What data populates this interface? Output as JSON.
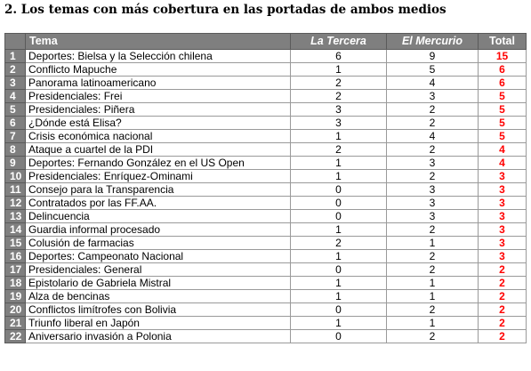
{
  "title": "2. Los temas con más cobertura en las portadas de ambos medios",
  "table": {
    "headers": {
      "num": "",
      "tema": "Tema",
      "la_tercera": "La Tercera",
      "el_mercurio": "El Mercurio",
      "total": "Total"
    },
    "rows": [
      {
        "n": "1",
        "tema": "Deportes: Bielsa y la Selección chilena",
        "lt": "6",
        "em": "9",
        "total": "15"
      },
      {
        "n": "2",
        "tema": "Conflicto Mapuche",
        "lt": "1",
        "em": "5",
        "total": "6"
      },
      {
        "n": "3",
        "tema": "Panorama latinoamericano",
        "lt": "2",
        "em": "4",
        "total": "6"
      },
      {
        "n": "4",
        "tema": "Presidenciales: Frei",
        "lt": "2",
        "em": "3",
        "total": "5"
      },
      {
        "n": "5",
        "tema": "Presidenciales: Piñera",
        "lt": "3",
        "em": "2",
        "total": "5"
      },
      {
        "n": "6",
        "tema": "¿Dónde está Elisa?",
        "lt": "3",
        "em": "2",
        "total": "5"
      },
      {
        "n": "7",
        "tema": "Crisis económica nacional",
        "lt": "1",
        "em": "4",
        "total": "5"
      },
      {
        "n": "8",
        "tema": "Ataque a cuartel de la PDI",
        "lt": "2",
        "em": "2",
        "total": "4"
      },
      {
        "n": "9",
        "tema": "Deportes: Fernando González en el US Open",
        "lt": "1",
        "em": "3",
        "total": "4"
      },
      {
        "n": "10",
        "tema": "Presidenciales: Enríquez-Ominami",
        "lt": "1",
        "em": "2",
        "total": "3"
      },
      {
        "n": "11",
        "tema": "Consejo para la Transparencia",
        "lt": "0",
        "em": "3",
        "total": "3"
      },
      {
        "n": "12",
        "tema": "Contratados por las FF.AA.",
        "lt": "0",
        "em": "3",
        "total": "3"
      },
      {
        "n": "13",
        "tema": "Delincuencia",
        "lt": "0",
        "em": "3",
        "total": "3"
      },
      {
        "n": "14",
        "tema": "Guardia informal procesado",
        "lt": "1",
        "em": "2",
        "total": "3"
      },
      {
        "n": "15",
        "tema": "Colusión de farmacias",
        "lt": "2",
        "em": "1",
        "total": "3"
      },
      {
        "n": "16",
        "tema": "Deportes: Campeonato Nacional",
        "lt": "1",
        "em": "2",
        "total": "3"
      },
      {
        "n": "17",
        "tema": "Presidenciales: General",
        "lt": "0",
        "em": "2",
        "total": "2"
      },
      {
        "n": "18",
        "tema": "Epistolario de Gabriela Mistral",
        "lt": "1",
        "em": "1",
        "total": "2"
      },
      {
        "n": "19",
        "tema": "Alza de bencinas",
        "lt": "1",
        "em": "1",
        "total": "2"
      },
      {
        "n": "20",
        "tema": "Conflictos limítrofes con Bolivia",
        "lt": "0",
        "em": "2",
        "total": "2"
      },
      {
        "n": "21",
        "tema": "Triunfo liberal en Japón",
        "lt": "1",
        "em": "1",
        "total": "2"
      },
      {
        "n": "22",
        "tema": "Aniversario invasión a Polonia",
        "lt": "0",
        "em": "2",
        "total": "2"
      }
    ]
  },
  "colors": {
    "header_bg": "#7f7f7f",
    "header_text": "#ffffff",
    "total_text": "#ff0000"
  }
}
